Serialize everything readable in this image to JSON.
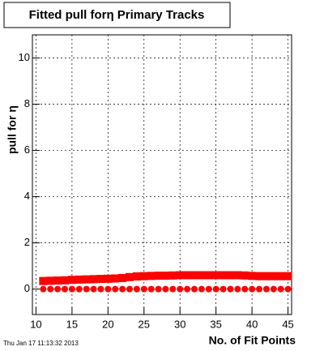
{
  "chart_data": {
    "type": "scatter",
    "title": "Fitted pull forη Primary Tracks",
    "x_label": "No. of Fit Points",
    "y_label": "pull for η",
    "footer": "Thu Jan 17 11:13:32 2013",
    "x": [
      11,
      12,
      13,
      14,
      15,
      16,
      17,
      18,
      19,
      20,
      21,
      22,
      23,
      24,
      25,
      26,
      27,
      28,
      29,
      30,
      31,
      32,
      33,
      34,
      35,
      36,
      37,
      38,
      39,
      40,
      41,
      42,
      43,
      44,
      45
    ],
    "series": [
      {
        "color": "#ff0000",
        "values": [
          0.35,
          0.36,
          0.37,
          0.38,
          0.4,
          0.41,
          0.42,
          0.43,
          0.44,
          0.45,
          0.46,
          0.48,
          0.52,
          0.55,
          0.56,
          0.57,
          0.58,
          0.58,
          0.59,
          0.6,
          0.6,
          0.6,
          0.6,
          0.6,
          0.6,
          0.6,
          0.6,
          0.6,
          0.59,
          0.57,
          0.56,
          0.56,
          0.56,
          0.56,
          0.56
        ]
      },
      {
        "color": "#ff0000",
        "values": [
          0,
          0,
          0,
          0,
          0,
          0,
          0,
          0,
          0,
          0,
          0,
          0,
          0,
          0,
          0,
          0,
          0,
          0,
          0,
          0,
          0,
          0,
          0,
          0,
          0,
          0,
          0,
          0,
          0,
          0,
          0,
          0,
          0,
          0,
          0
        ]
      }
    ],
    "xlim": [
      9.5,
      45.5
    ],
    "ylim": [
      -1.1,
      11
    ],
    "xticks": [
      10,
      15,
      20,
      25,
      30,
      35,
      40,
      45
    ],
    "yticks": [
      0,
      2,
      4,
      6,
      8,
      10
    ],
    "grid": true
  }
}
